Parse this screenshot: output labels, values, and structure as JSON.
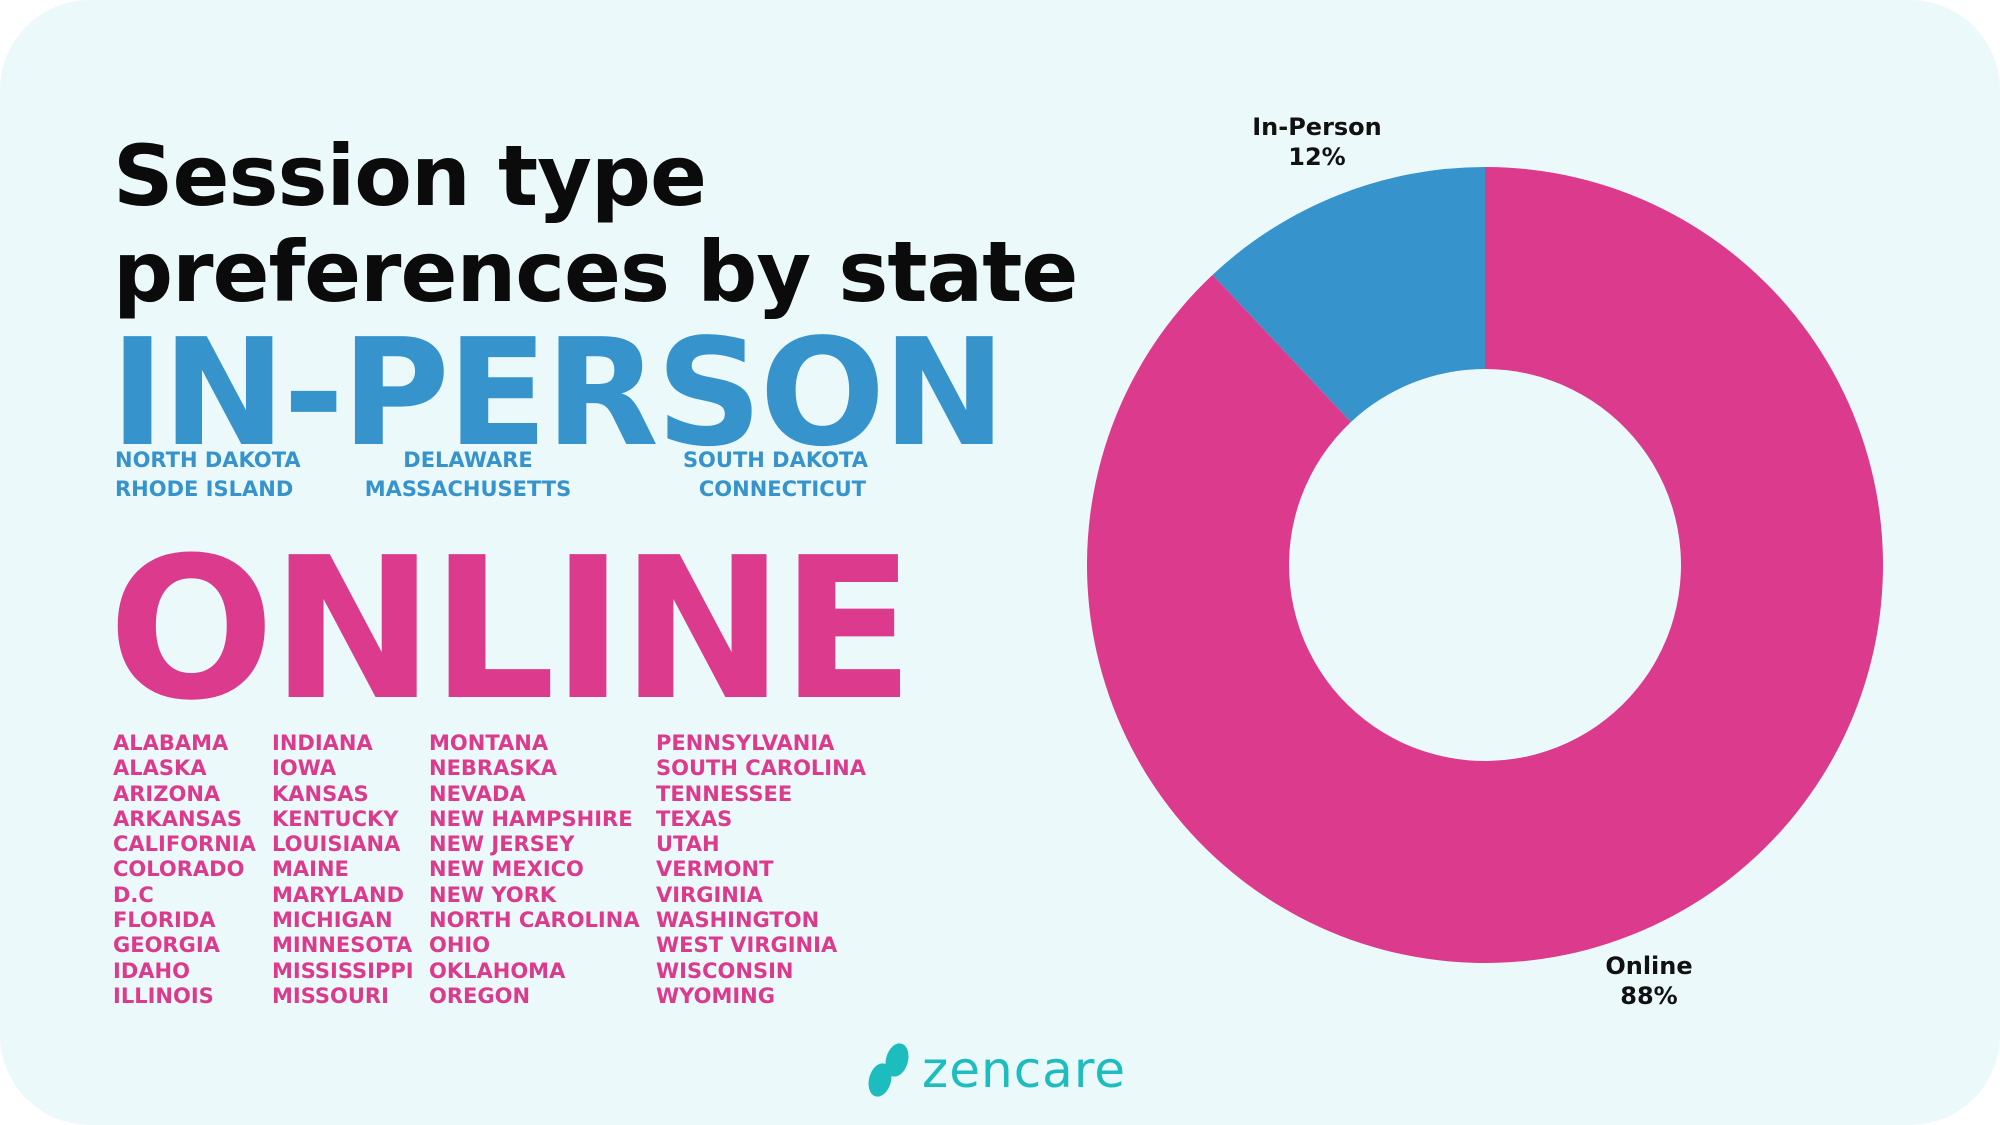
{
  "title_lines": [
    "Session type",
    "preferences by state"
  ],
  "in_person": {
    "heading": "IN-PERSON",
    "states": [
      "NORTH DAKOTA",
      "RHODE ISLAND",
      "DELAWARE",
      "MASSACHUSETTS",
      "SOUTH DAKOTA",
      "CONNECTICUT"
    ]
  },
  "online": {
    "heading": "ONLINE",
    "columns": [
      [
        "ALABAMA",
        "ALASKA",
        "ARIZONA",
        "ARKANSAS",
        "CALIFORNIA",
        "COLORADO",
        "D.C",
        "FLORIDA",
        "GEORGIA",
        "IDAHO",
        "ILLINOIS"
      ],
      [
        "INDIANA",
        "IOWA",
        "KANSAS",
        "KENTUCKY",
        "LOUISIANA",
        "MAINE",
        "MARYLAND",
        "MICHIGAN",
        "MINNESOTA",
        "MISSISSIPPI",
        "MISSOURI"
      ],
      [
        "MONTANA",
        "NEBRASKA",
        "NEVADA",
        "NEW HAMPSHIRE",
        "NEW JERSEY",
        "NEW MEXICO",
        "NEW YORK",
        "NORTH CAROLINA",
        "OHIO",
        "OKLAHOMA",
        "OREGON"
      ],
      [
        "PENNSYLVANIA",
        "SOUTH CAROLINA",
        "TENNESSEE",
        "TEXAS",
        "UTAH",
        "VERMONT",
        "VIRGINIA",
        "WASHINGTON",
        "WEST VIRGINIA",
        "WISCONSIN",
        "WYOMING"
      ]
    ]
  },
  "logo": {
    "text": "zencare",
    "color": "#1dbcbf"
  },
  "chart_data": {
    "type": "pie",
    "donut": true,
    "categories": [
      "In-Person",
      "Online"
    ],
    "values": [
      12,
      88
    ],
    "labels": [
      "12%",
      "88%"
    ],
    "colors": [
      "#3793cc",
      "#dc3a8c"
    ]
  }
}
